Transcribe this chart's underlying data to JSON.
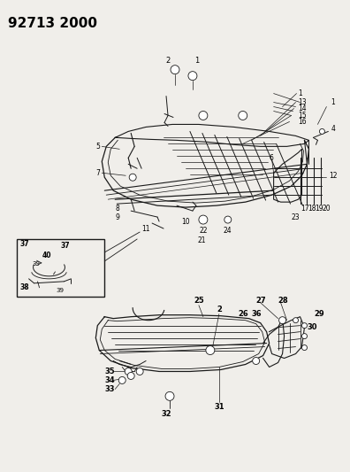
{
  "title": "92713 2000",
  "bg": "#f0eeea",
  "lc": "#1a1a1a",
  "fig_w": 3.96,
  "fig_h": 5.33,
  "dpi": 100
}
